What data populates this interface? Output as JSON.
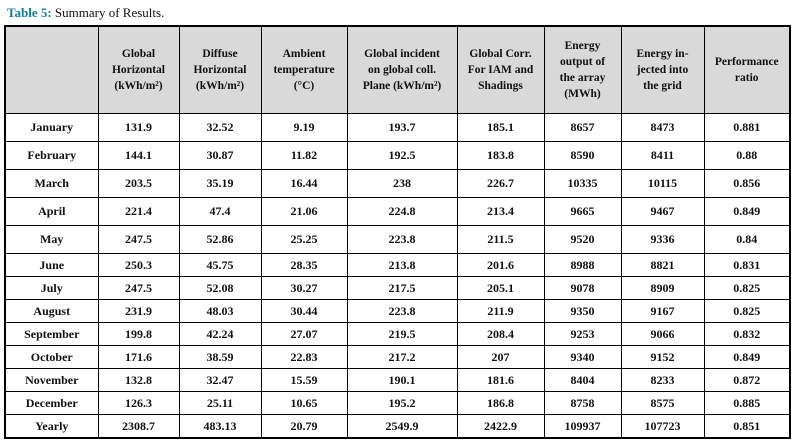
{
  "colors": {
    "caption_label": "#0e7f9c",
    "header_bg": "#d9d9d9",
    "border": "#000000"
  },
  "caption": {
    "label": "Table 5:",
    "text": "Summary of Results."
  },
  "table": {
    "headers": [
      "",
      "Global\nHorizontal\n(kWh/m²)",
      "Diffuse\nHorizontal\n(kWh/m²)",
      "Ambient\ntemperature\n(°C)",
      "Global incident\non global coll.\nPlane (kWh/m²)",
      "Global Corr.\nFor IAM and\nShadings",
      "Energy\noutput of\nthe array\n(MWh)",
      "Energy in-\njected into\nthe grid",
      "Performance\nratio"
    ],
    "rows": [
      {
        "month": "January",
        "values": [
          "131.9",
          "32.52",
          "9.19",
          "193.7",
          "185.1",
          "8657",
          "8473",
          "0.881"
        ]
      },
      {
        "month": "February",
        "values": [
          "144.1",
          "30.87",
          "11.82",
          "192.5",
          "183.8",
          "8590",
          "8411",
          "0.88"
        ]
      },
      {
        "month": "March",
        "values": [
          "203.5",
          "35.19",
          "16.44",
          "238",
          "226.7",
          "10335",
          "10115",
          "0.856"
        ]
      },
      {
        "month": "April",
        "values": [
          "221.4",
          "47.4",
          "21.06",
          "224.8",
          "213.4",
          "9665",
          "9467",
          "0.849"
        ]
      },
      {
        "month": "May",
        "values": [
          "247.5",
          "52.86",
          "25.25",
          "223.8",
          "211.5",
          "9520",
          "9336",
          "0.84"
        ]
      },
      {
        "month": "June",
        "values": [
          "250.3",
          "45.75",
          "28.35",
          "213.8",
          "201.6",
          "8988",
          "8821",
          "0.831"
        ]
      },
      {
        "month": "July",
        "values": [
          "247.5",
          "52.08",
          "30.27",
          "217.5",
          "205.1",
          "9078",
          "8909",
          "0.825"
        ]
      },
      {
        "month": "August",
        "values": [
          "231.9",
          "48.03",
          "30.44",
          "223.8",
          "211.9",
          "9350",
          "9167",
          "0.825"
        ]
      },
      {
        "month": "September",
        "values": [
          "199.8",
          "42.24",
          "27.07",
          "219.5",
          "208.4",
          "9253",
          "9066",
          "0.832"
        ]
      },
      {
        "month": "October",
        "values": [
          "171.6",
          "38.59",
          "22.83",
          "217.2",
          "207",
          "9340",
          "9152",
          "0.849"
        ]
      },
      {
        "month": "November",
        "values": [
          "132.8",
          "32.47",
          "15.59",
          "190.1",
          "181.6",
          "8404",
          "8233",
          "0.872"
        ]
      },
      {
        "month": "December",
        "values": [
          "126.3",
          "25.11",
          "10.65",
          "195.2",
          "186.8",
          "8758",
          "8575",
          "0.885"
        ]
      },
      {
        "month": "Yearly",
        "values": [
          "2308.7",
          "483.13",
          "20.79",
          "2549.9",
          "2422.9",
          "109937",
          "107723",
          "0.851"
        ]
      }
    ]
  }
}
